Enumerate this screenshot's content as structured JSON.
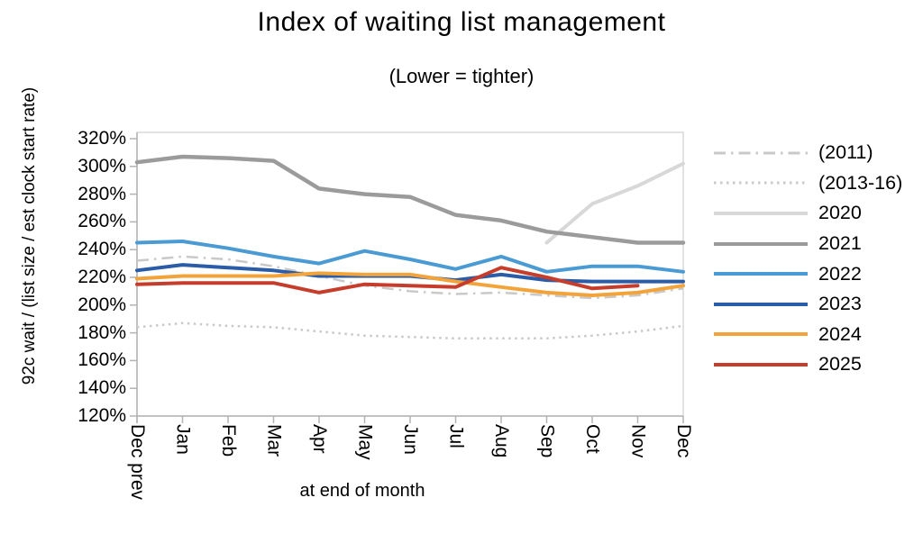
{
  "chart_data": {
    "type": "line",
    "title": "Index of waiting list management",
    "subtitle": "(Lower = tighter)",
    "ylabel": "92c wait / (list size / est clock start rate)",
    "xlabel": "at end of month",
    "ylim": [
      120,
      320
    ],
    "ytick_step": 20,
    "ytick_suffix": "%",
    "yticks": [
      320,
      300,
      280,
      260,
      240,
      220,
      200,
      180,
      160,
      140,
      120
    ],
    "categories": [
      "Dec prev",
      "Jan",
      "Feb",
      "Mar",
      "Apr",
      "May",
      "Jun",
      "Jul",
      "Aug",
      "Sep",
      "Oct",
      "Nov",
      "Dec"
    ],
    "grid": false,
    "legend_position": "right",
    "axis_color": "#b3b3b3",
    "border_color": "#d9d9d9",
    "series": [
      {
        "name": "(2011)",
        "color": "#c9c9c9",
        "style": "dashdot",
        "width": 2.5,
        "values": [
          232,
          235,
          233,
          228,
          221,
          214,
          210,
          208,
          209,
          207,
          205,
          207,
          212
        ]
      },
      {
        "name": "(2013-16)",
        "color": "#c9c9c9",
        "style": "dotted",
        "width": 2.5,
        "values": [
          184,
          187,
          185,
          184,
          181,
          178,
          177,
          176,
          176,
          176,
          178,
          181,
          185
        ]
      },
      {
        "name": "2020",
        "color": "#d8d8d8",
        "style": "solid",
        "width": 4,
        "values": [
          null,
          null,
          null,
          null,
          null,
          null,
          null,
          null,
          null,
          245,
          273,
          286,
          302
        ]
      },
      {
        "name": "2021",
        "color": "#9b9b9b",
        "style": "solid",
        "width": 4.5,
        "values": [
          303,
          307,
          306,
          304,
          284,
          280,
          278,
          265,
          261,
          253,
          249,
          245,
          245
        ]
      },
      {
        "name": "2022",
        "color": "#4a9ad4",
        "style": "solid",
        "width": 4,
        "values": [
          245,
          246,
          241,
          235,
          230,
          239,
          233,
          226,
          235,
          224,
          228,
          228,
          224
        ]
      },
      {
        "name": "2023",
        "color": "#2a5ca8",
        "style": "solid",
        "width": 4,
        "values": [
          225,
          229,
          227,
          225,
          221,
          221,
          221,
          218,
          222,
          218,
          217,
          217,
          217
        ]
      },
      {
        "name": "2024",
        "color": "#f2a43a",
        "style": "solid",
        "width": 4,
        "values": [
          219,
          221,
          221,
          221,
          223,
          222,
          222,
          217,
          213,
          209,
          207,
          209,
          214
        ]
      },
      {
        "name": "2025",
        "color": "#c63d2c",
        "style": "solid",
        "width": 4,
        "values": [
          215,
          216,
          216,
          216,
          209,
          215,
          214,
          213,
          227,
          220,
          212,
          214,
          null
        ]
      }
    ]
  }
}
